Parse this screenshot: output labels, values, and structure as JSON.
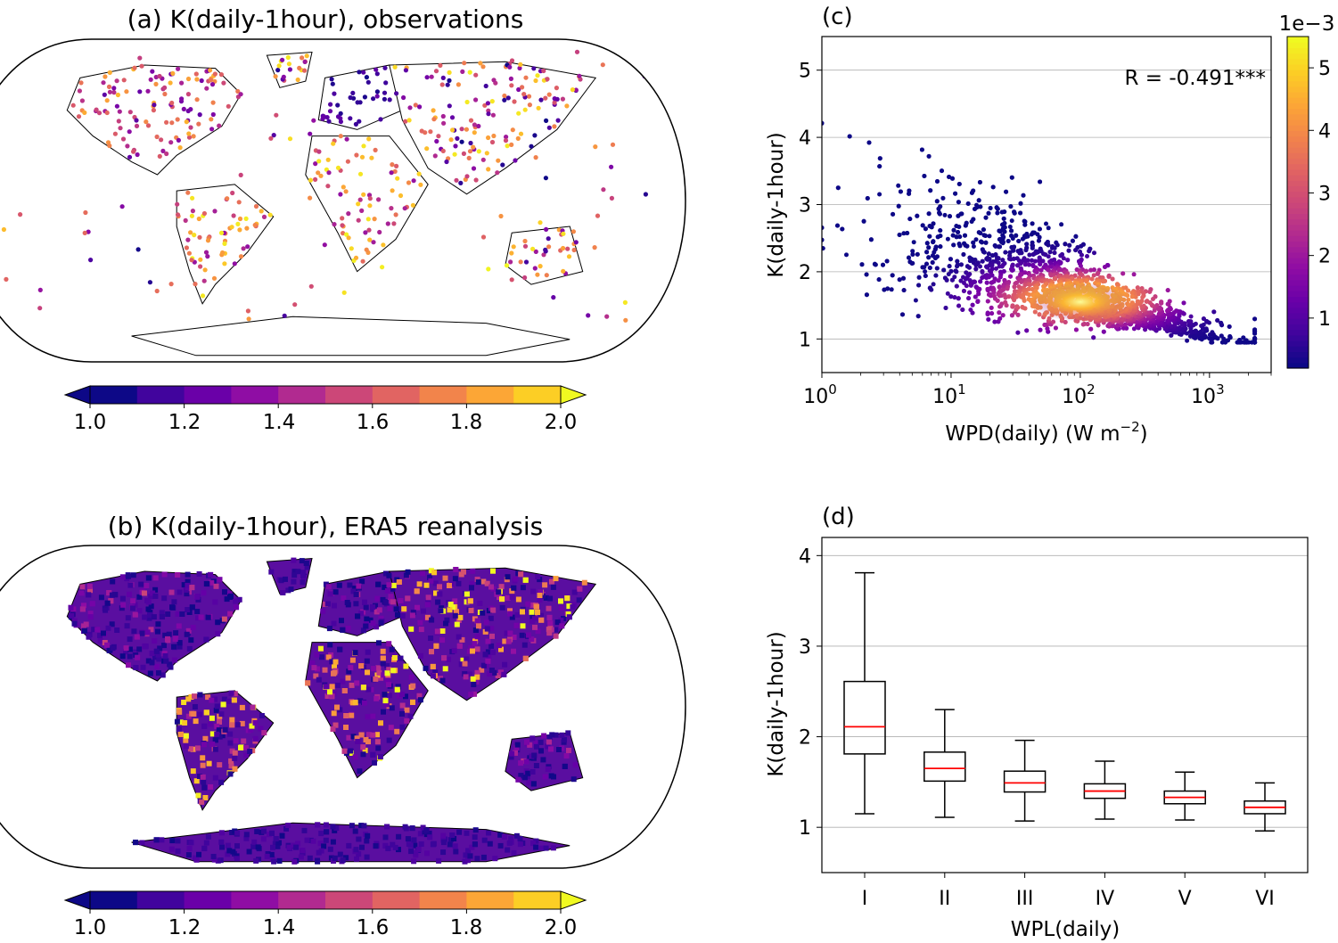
{
  "colors": {
    "plasma": [
      "#0d0887",
      "#41049d",
      "#6a00a8",
      "#8f0da4",
      "#b12a90",
      "#cc4778",
      "#e16462",
      "#f2844b",
      "#fca636",
      "#fcce25",
      "#f0f921"
    ],
    "median": "#ff0000",
    "frame": "#000000",
    "grid": "#b0b0b0",
    "land": "#ffffff"
  },
  "chart_data": [
    {
      "id": "a",
      "type": "map",
      "title": "(a) K(daily-1hour), observations",
      "colorbar": {
        "tick_labels": [
          "1.0",
          "1.2",
          "1.4",
          "1.6",
          "1.8",
          "2.0"
        ],
        "range": [
          1.0,
          2.0
        ],
        "levels": 10,
        "extend": "both"
      },
      "description_regions": [
        "North America",
        "Europe",
        "South America",
        "Africa",
        "Asia",
        "Australia",
        "Antarctica"
      ]
    },
    {
      "id": "b",
      "type": "map",
      "title": "(b) K(daily-1hour), ERA5 reanalysis",
      "colorbar": {
        "tick_labels": [
          "1.0",
          "1.2",
          "1.4",
          "1.6",
          "1.8",
          "2.0"
        ],
        "range": [
          1.0,
          2.0
        ],
        "levels": 10,
        "extend": "both"
      }
    },
    {
      "id": "c",
      "type": "scatter",
      "title": "(c)",
      "xlabel": "WPD(daily) (W m",
      "xlabel_sup": "−2",
      "xlabel_suffix": ")",
      "ylabel": "K(daily-1hour)",
      "xscale": "log",
      "xlim": [
        1,
        3000
      ],
      "ylim": [
        0.5,
        5.5
      ],
      "x_ticks": [
        {
          "value": 1,
          "base": "10",
          "exp": "0"
        },
        {
          "value": 10,
          "base": "10",
          "exp": "1"
        },
        {
          "value": 100,
          "base": "10",
          "exp": "2"
        },
        {
          "value": 1000,
          "base": "10",
          "exp": "3"
        }
      ],
      "y_ticks": [
        1,
        2,
        3,
        4,
        5
      ],
      "annotation": "R = -0.491***",
      "colorbar": {
        "offset_label": "1e−3",
        "ticks": [
          "1",
          "2",
          "3",
          "4",
          "5"
        ],
        "range": [
          0.0002,
          0.0055
        ]
      },
      "point_cloud": {
        "n": 3200,
        "trend": {
          "a": 2.45,
          "b": -0.47
        },
        "center_logx": 2.0,
        "center_y": 1.6
      }
    },
    {
      "id": "d",
      "type": "boxplot",
      "title": "(d)",
      "xlabel": "WPL(daily)",
      "ylabel": "K(daily-1hour)",
      "ylim": [
        0.5,
        4.2
      ],
      "y_ticks": [
        1,
        2,
        3,
        4
      ],
      "categories": [
        "I",
        "II",
        "III",
        "IV",
        "V",
        "VI"
      ],
      "boxes": [
        {
          "whisker_low": 1.15,
          "q1": 1.81,
          "median": 2.11,
          "q3": 2.61,
          "whisker_high": 3.81
        },
        {
          "whisker_low": 1.11,
          "q1": 1.51,
          "median": 1.65,
          "q3": 1.83,
          "whisker_high": 2.3
        },
        {
          "whisker_low": 1.07,
          "q1": 1.39,
          "median": 1.49,
          "q3": 1.62,
          "whisker_high": 1.96
        },
        {
          "whisker_low": 1.09,
          "q1": 1.32,
          "median": 1.4,
          "q3": 1.48,
          "whisker_high": 1.73
        },
        {
          "whisker_low": 1.08,
          "q1": 1.26,
          "median": 1.33,
          "q3": 1.4,
          "whisker_high": 1.61
        },
        {
          "whisker_low": 0.96,
          "q1": 1.15,
          "median": 1.22,
          "q3": 1.29,
          "whisker_high": 1.49
        }
      ]
    }
  ]
}
